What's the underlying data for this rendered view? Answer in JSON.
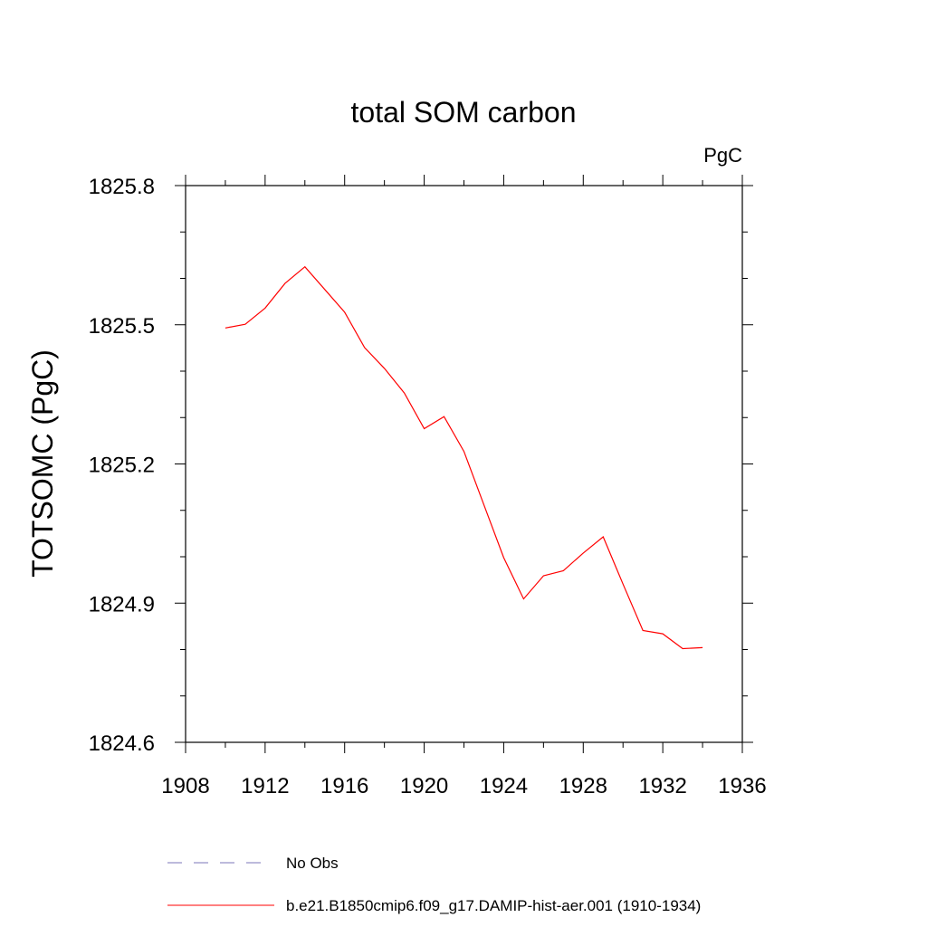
{
  "chart_data": {
    "type": "line",
    "title": "total SOM carbon",
    "units_label": "PgC",
    "ylabel": "TOTSOMC  (PgC)",
    "xlabel": "",
    "xlim": [
      1908,
      1936
    ],
    "ylim": [
      1824.6,
      1825.8
    ],
    "x_ticks": [
      "1908",
      "1912",
      "1916",
      "1920",
      "1924",
      "1928",
      "1932",
      "1936"
    ],
    "y_ticks": [
      "1824.6",
      "1824.9",
      "1825.2",
      "1825.5",
      "1825.8"
    ],
    "grid": false,
    "legend_position": "bottom",
    "series": [
      {
        "name": "b.e21.B1850cmip6.f09_g17.DAMIP-hist-aer.001 (1910-1934)",
        "color": "#ff0000",
        "style": "solid",
        "x": [
          1910,
          1911,
          1912,
          1913,
          1914,
          1915,
          1916,
          1917,
          1918,
          1919,
          1920,
          1921,
          1922,
          1923,
          1924,
          1925,
          1926,
          1927,
          1928,
          1929,
          1930,
          1931,
          1932,
          1933,
          1934
        ],
        "y": [
          1825.493,
          1825.501,
          1825.536,
          1825.589,
          1825.625,
          1825.576,
          1825.527,
          1825.451,
          1825.406,
          1825.353,
          1825.276,
          1825.302,
          1825.227,
          1825.112,
          1824.998,
          1824.909,
          1824.959,
          1824.97,
          1825.008,
          1825.043,
          1824.941,
          1824.841,
          1824.834,
          1824.802,
          1824.804
        ]
      },
      {
        "name": "No Obs",
        "color": "#7b74b8",
        "style": "dashed",
        "x": [],
        "y": []
      }
    ]
  }
}
